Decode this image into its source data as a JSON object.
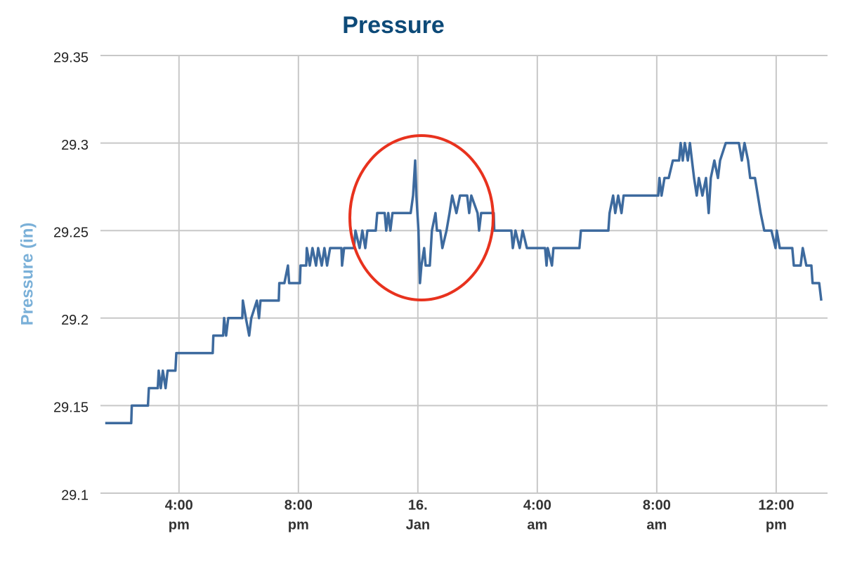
{
  "chart_data": {
    "type": "line",
    "title": "Pressure",
    "y_label": "Pressure (in)",
    "xlim": [
      13.37,
      37.72
    ],
    "ylim": [
      29.1,
      29.35
    ],
    "yticks": [
      29.1,
      29.15,
      29.2,
      29.25,
      29.3,
      29.35
    ],
    "xticks": [
      {
        "value": 16,
        "label": [
          "4:00",
          "pm"
        ]
      },
      {
        "value": 20,
        "label": [
          "8:00",
          "pm"
        ]
      },
      {
        "value": 24,
        "label": [
          "16.",
          "Jan"
        ]
      },
      {
        "value": 28,
        "label": [
          "4:00",
          "am"
        ]
      },
      {
        "value": 32,
        "label": [
          "8:00",
          "am"
        ]
      },
      {
        "value": 36,
        "label": [
          "12:00",
          "pm"
        ]
      }
    ],
    "grid": true,
    "series": [
      {
        "name": "Pressure",
        "color": "#3d6a9e",
        "x": [
          13.53,
          14.4,
          14.42,
          14.96,
          14.99,
          15.29,
          15.32,
          15.39,
          15.46,
          15.55,
          15.62,
          15.88,
          15.91,
          17.13,
          17.15,
          17.48,
          17.51,
          17.58,
          17.65,
          18.12,
          18.14,
          18.24,
          18.35,
          18.42,
          18.61,
          18.68,
          18.73,
          19.34,
          19.36,
          19.53,
          19.65,
          19.69,
          20.05,
          20.07,
          20.26,
          20.28,
          20.38,
          20.47,
          20.59,
          20.66,
          20.78,
          20.87,
          20.96,
          21.06,
          21.44,
          21.46,
          21.53,
          21.86,
          21.91,
          22.05,
          22.14,
          22.24,
          22.31,
          22.59,
          22.64,
          22.89,
          22.94,
          23.01,
          23.08,
          23.15,
          23.76,
          23.84,
          23.91,
          23.95,
          24.02,
          24.07,
          24.12,
          24.21,
          24.26,
          24.4,
          24.47,
          24.59,
          24.64,
          24.75,
          24.82,
          24.96,
          25.06,
          25.15,
          25.29,
          25.41,
          25.65,
          25.72,
          25.79,
          26.0,
          26.05,
          26.12,
          26.54,
          26.56,
          27.13,
          27.18,
          27.27,
          27.41,
          27.51,
          27.65,
          28.26,
          28.31,
          28.35,
          28.49,
          28.54,
          29.41,
          29.46,
          30.38,
          30.42,
          30.54,
          30.61,
          30.71,
          30.82,
          30.89,
          32.05,
          32.09,
          32.16,
          32.26,
          32.4,
          32.54,
          32.75,
          32.8,
          32.87,
          32.94,
          33.04,
          33.11,
          33.18,
          33.25,
          33.34,
          33.41,
          33.53,
          33.65,
          33.74,
          33.81,
          33.93,
          34.05,
          34.12,
          34.31,
          34.75,
          34.85,
          34.94,
          35.06,
          35.13,
          35.29,
          35.48,
          35.6,
          35.84,
          35.98,
          36.02,
          36.12,
          36.54,
          36.59,
          36.82,
          36.89,
          37.01,
          37.18,
          37.22,
          37.44,
          37.51
        ],
        "values": [
          29.14,
          29.14,
          29.15,
          29.15,
          29.16,
          29.16,
          29.17,
          29.16,
          29.17,
          29.16,
          29.17,
          29.17,
          29.18,
          29.18,
          29.19,
          29.19,
          29.2,
          29.19,
          29.2,
          29.2,
          29.21,
          29.2,
          29.19,
          29.2,
          29.21,
          29.2,
          29.21,
          29.21,
          29.22,
          29.22,
          29.23,
          29.22,
          29.22,
          29.23,
          29.23,
          29.24,
          29.23,
          29.24,
          29.23,
          29.24,
          29.23,
          29.24,
          29.23,
          29.24,
          29.24,
          29.23,
          29.24,
          29.24,
          29.25,
          29.24,
          29.25,
          29.24,
          29.25,
          29.25,
          29.26,
          29.26,
          29.25,
          29.26,
          29.25,
          29.26,
          29.26,
          29.27,
          29.29,
          29.27,
          29.25,
          29.22,
          29.23,
          29.24,
          29.23,
          29.23,
          29.25,
          29.26,
          29.25,
          29.25,
          29.24,
          29.25,
          29.26,
          29.27,
          29.26,
          29.27,
          29.27,
          29.26,
          29.27,
          29.26,
          29.25,
          29.26,
          29.26,
          29.25,
          29.25,
          29.24,
          29.25,
          29.24,
          29.25,
          29.24,
          29.24,
          29.23,
          29.24,
          29.23,
          29.24,
          29.24,
          29.25,
          29.25,
          29.26,
          29.27,
          29.26,
          29.27,
          29.26,
          29.27,
          29.27,
          29.28,
          29.27,
          29.28,
          29.28,
          29.29,
          29.29,
          29.3,
          29.29,
          29.3,
          29.29,
          29.3,
          29.29,
          29.28,
          29.27,
          29.28,
          29.27,
          29.28,
          29.26,
          29.28,
          29.29,
          29.28,
          29.29,
          29.3,
          29.3,
          29.29,
          29.3,
          29.29,
          29.28,
          29.28,
          29.26,
          29.25,
          29.25,
          29.24,
          29.25,
          29.24,
          29.24,
          29.23,
          29.23,
          29.24,
          29.23,
          29.23,
          29.22,
          29.22,
          29.21
        ]
      }
    ]
  }
}
